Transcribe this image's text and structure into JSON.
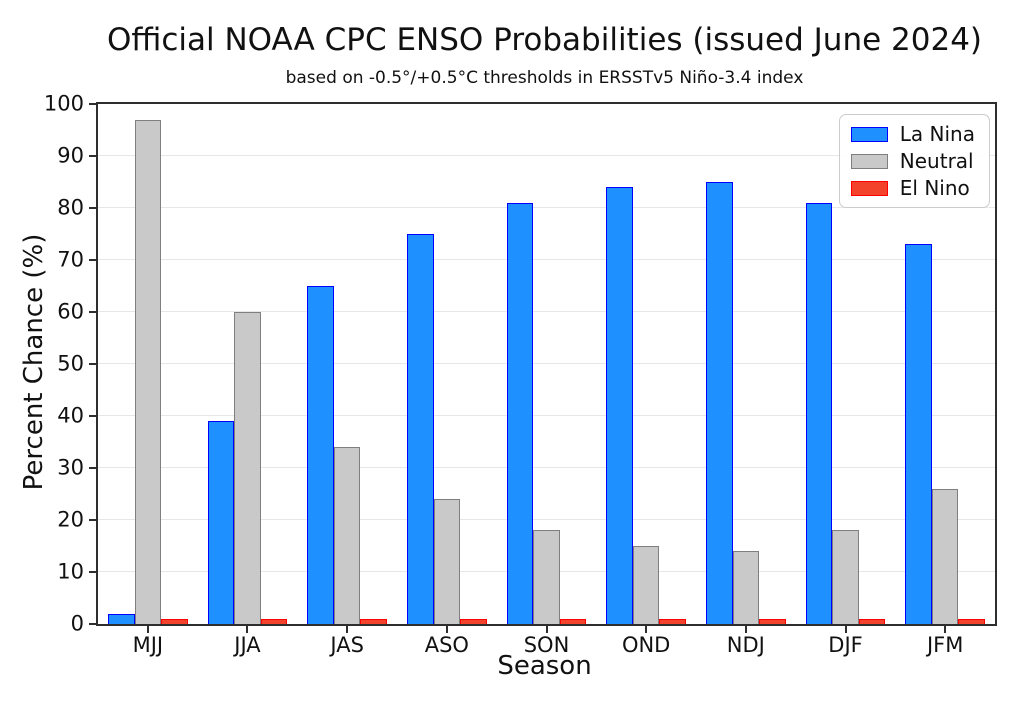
{
  "chart_data": {
    "type": "bar",
    "title": "Official NOAA CPC ENSO Probabilities (issued June 2024)",
    "subtitle": "based on -0.5°/+0.5°C thresholds in ERSSTv5 Niño-3.4 index",
    "xlabel": "Season",
    "ylabel": "Percent Chance (%)",
    "ylim": [
      0,
      100
    ],
    "ytick_step": 10,
    "grid": "horizontal",
    "legend_position": "upper right",
    "categories": [
      "MJJ",
      "JJA",
      "JAS",
      "ASO",
      "SON",
      "OND",
      "NDJ",
      "DJF",
      "JFM"
    ],
    "series": [
      {
        "name": "La Nina",
        "fill": "#1e90ff",
        "edge": "#0000ff",
        "values": [
          2,
          39,
          65,
          75,
          81,
          84,
          85,
          81,
          73
        ]
      },
      {
        "name": "Neutral",
        "fill": "#c9c9c9",
        "edge": "#7f7f7f",
        "values": [
          97,
          60,
          34,
          24,
          18,
          15,
          14,
          18,
          26
        ]
      },
      {
        "name": "El Nino",
        "fill": "#f4432c",
        "edge": "#ff0000",
        "values": [
          1,
          1,
          1,
          1,
          1,
          1,
          1,
          1,
          1
        ]
      }
    ]
  }
}
